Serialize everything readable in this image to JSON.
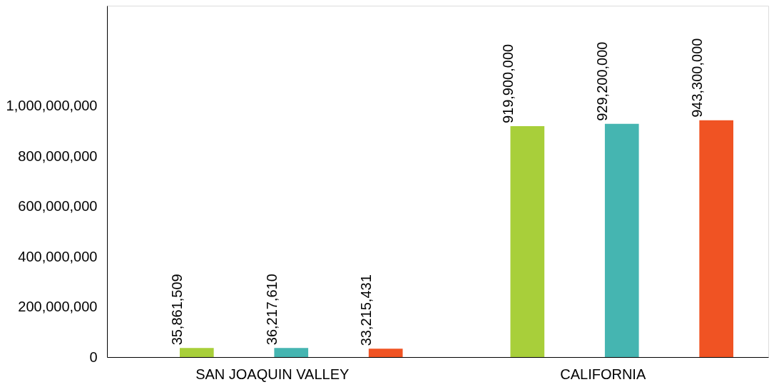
{
  "chart_data": {
    "type": "bar",
    "categories": [
      "SAN JOAQUIN VALLEY",
      "CALIFORNIA"
    ],
    "series": [
      {
        "color": "#a8cf3a",
        "values": [
          35861509,
          919900000
        ],
        "value_labels": [
          "35,861,509",
          "919,900,000"
        ]
      },
      {
        "color": "#45b5b1",
        "values": [
          36217610,
          929200000
        ],
        "value_labels": [
          "36,217,610",
          "929,200,000"
        ]
      },
      {
        "color": "#f05323",
        "values": [
          33215431,
          943300000
        ],
        "value_labels": [
          "33,215,431",
          "943,300,000"
        ]
      }
    ],
    "ylim": [
      0,
      1400000000
    ],
    "yticks": [
      0,
      {
        "value": 200000000,
        "label": "200,000,000"
      },
      {
        "value": 400000000,
        "label": "400,000,000"
      },
      {
        "value": 600000000,
        "label": "600,000,000"
      },
      {
        "value": 800000000,
        "label": "800,000,000"
      },
      {
        "value": 1000000000,
        "label": "1,000,000,000"
      }
    ],
    "grid": false,
    "legend": false
  }
}
